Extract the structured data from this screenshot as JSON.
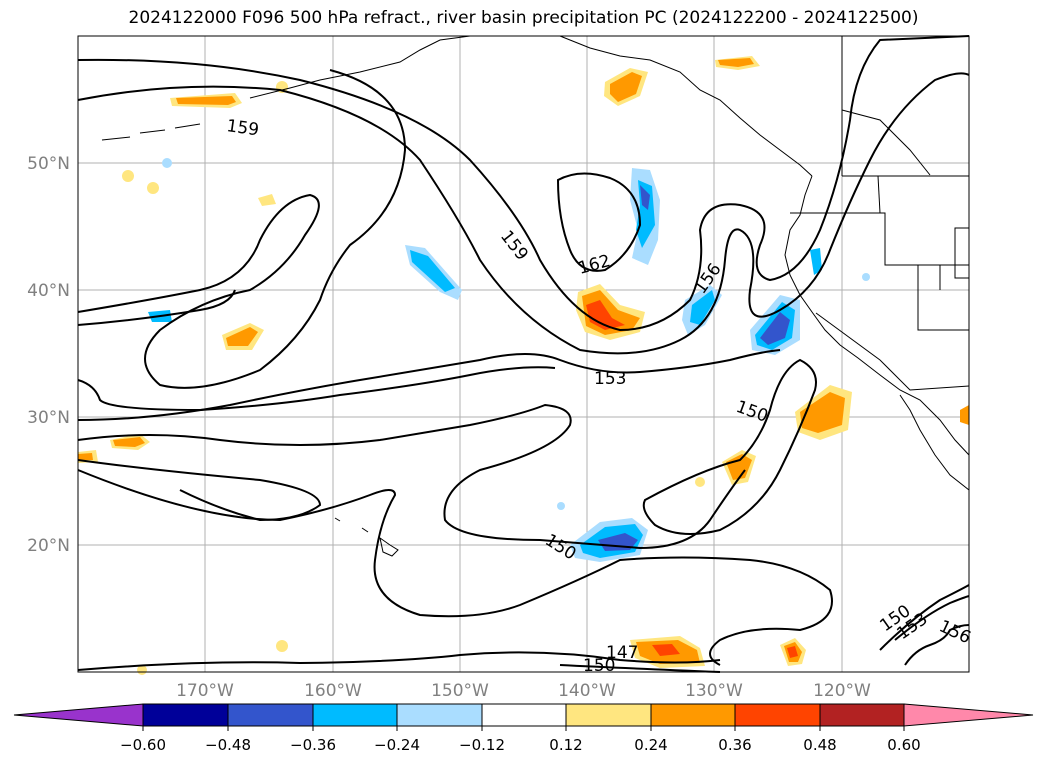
{
  "title": "2024122000 F096 500 hPa refract., river basin precipitation PC (2024122200 - 2024122500)",
  "map": {
    "lon_labels": [
      "170°W",
      "160°W",
      "150°W",
      "140°W",
      "130°W",
      "120°W"
    ],
    "lat_labels": [
      "50°N",
      "40°N",
      "30°N",
      "20°N"
    ],
    "label_color": "#808080",
    "grid_color": "#b0b0b0"
  },
  "contours": {
    "line_color": "#000000",
    "labels": [
      "159",
      "159",
      "162",
      "156",
      "153",
      "150",
      "150",
      "147",
      "150",
      "150",
      "153",
      "156"
    ]
  },
  "colorbar": {
    "ticks": [
      "−0.60",
      "−0.48",
      "−0.36",
      "−0.24",
      "−0.12",
      "0.12",
      "0.24",
      "0.36",
      "0.48",
      "0.60"
    ],
    "colors": [
      "#9933cc",
      "#000099",
      "#3355cc",
      "#00bbff",
      "#aaddff",
      "#ffffff",
      "#ffe680",
      "#ff9900",
      "#ff4400",
      "#b22222",
      "#ff88aa"
    ]
  }
}
